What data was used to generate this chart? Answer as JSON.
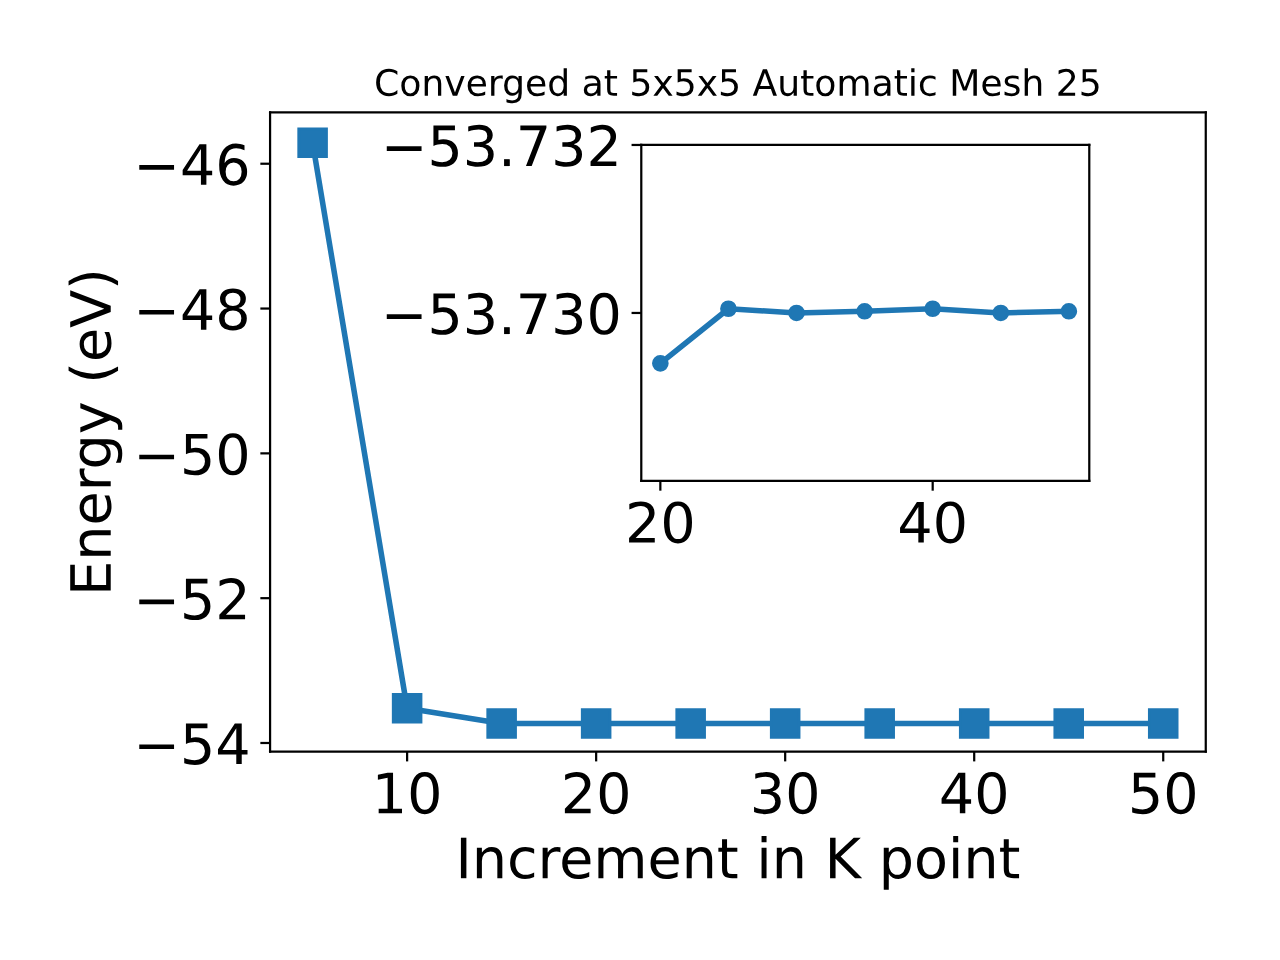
{
  "chart_data": [
    {
      "type": "line",
      "title": "Converged at 5x5x5 Automatic Mesh 25",
      "xlabel": "Increment in K point",
      "ylabel": "Energy (eV)",
      "x": [
        5,
        10,
        15,
        20,
        25,
        30,
        35,
        40,
        45,
        50
      ],
      "series": [
        {
          "color": "#1f77b4",
          "values": [
            -45.71,
            -53.52,
            -53.73,
            -53.73,
            -53.73,
            -53.73,
            -53.73,
            -53.73,
            -53.73,
            -53.73
          ]
        }
      ],
      "marker": "square",
      "line_style": "solid",
      "grid": false,
      "xlim": [
        2.75,
        52.25
      ],
      "xticks": [
        10,
        20,
        30,
        40,
        50
      ],
      "ylim": [
        -54.12,
        -45.29
      ],
      "yticks": [
        -54,
        -52,
        -50,
        -48,
        -46
      ]
    },
    {
      "type": "line",
      "x": [
        20,
        25,
        30,
        35,
        40,
        45,
        50
      ],
      "series": [
        {
          "color": "#1f77b4",
          "values": [
            -53.7294,
            -53.73005,
            -53.73,
            -53.73002,
            -53.73005,
            -53.73,
            -53.73002
          ]
        }
      ],
      "marker": "circle",
      "line_style": "solid",
      "grid": false,
      "xlim": [
        18.6,
        51.5
      ],
      "xticks": [
        20,
        40
      ],
      "ylim": [
        -53.728,
        -53.732
      ],
      "yticks": [
        -53.732,
        {
          "value": -53.73,
          "label": "−53.730"
        }
      ]
    }
  ]
}
